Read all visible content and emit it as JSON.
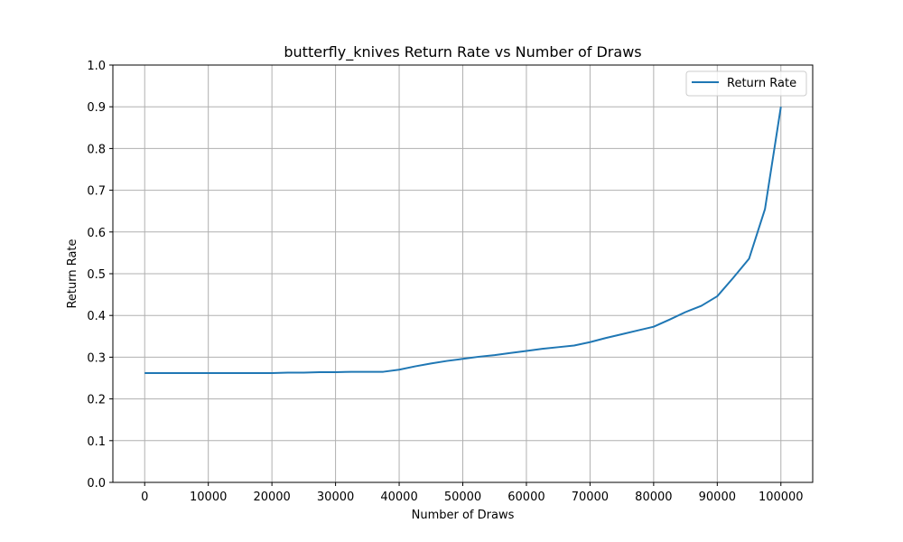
{
  "chart_data": {
    "type": "line",
    "title": "butterfly_knives Return Rate vs Number of Draws",
    "xlabel": "Number of Draws",
    "ylabel": "Return Rate",
    "xlim": [
      -5000,
      105000
    ],
    "ylim": [
      0,
      1.0
    ],
    "x_ticks": [
      "0",
      "10000",
      "20000",
      "30000",
      "40000",
      "50000",
      "60000",
      "70000",
      "80000",
      "90000",
      "100000"
    ],
    "y_ticks": [
      "0.0",
      "0.1",
      "0.2",
      "0.3",
      "0.4",
      "0.5",
      "0.6",
      "0.7",
      "0.8",
      "0.9",
      "1.0"
    ],
    "grid": true,
    "legend_position": "top-right",
    "series": [
      {
        "name": "Return Rate",
        "color": "#1f77b4",
        "x": [
          0,
          2500,
          5000,
          7500,
          10000,
          12500,
          15000,
          17500,
          20000,
          22500,
          25000,
          27500,
          30000,
          32500,
          35000,
          37500,
          40000,
          42500,
          45000,
          47500,
          50000,
          52500,
          55000,
          57500,
          60000,
          62500,
          65000,
          67500,
          70000,
          72500,
          75000,
          77500,
          80000,
          82500,
          85000,
          87500,
          90000,
          92500,
          95000,
          97500,
          100000
        ],
        "y": [
          0.262,
          0.262,
          0.262,
          0.262,
          0.262,
          0.262,
          0.262,
          0.262,
          0.262,
          0.263,
          0.263,
          0.264,
          0.264,
          0.265,
          0.265,
          0.265,
          0.27,
          0.278,
          0.285,
          0.291,
          0.296,
          0.301,
          0.305,
          0.31,
          0.315,
          0.32,
          0.324,
          0.328,
          0.336,
          0.346,
          0.355,
          0.364,
          0.373,
          0.39,
          0.408,
          0.423,
          0.446,
          0.49,
          0.536,
          0.655,
          0.9
        ]
      }
    ]
  }
}
